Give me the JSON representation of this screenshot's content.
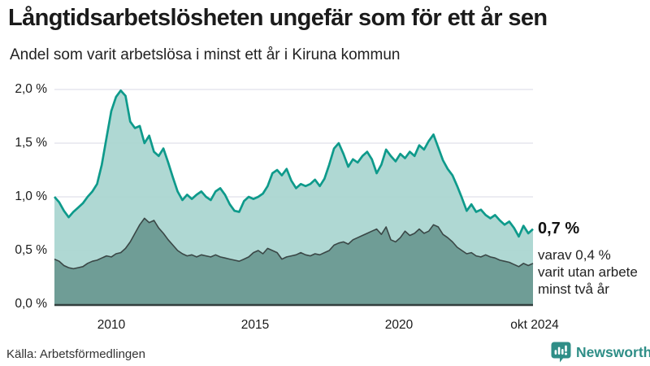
{
  "header": {
    "title": "Långtidsarbetslösheten ungefär som för ett år sen",
    "subtitle": "Andel som varit arbetslösa i minst ett år i Kiruna kommun"
  },
  "chart_data": {
    "type": "area",
    "title": "Långtidsarbetslösheten ungefär som för ett år sen",
    "subtitle": "Andel som varit arbetslösa i minst ett år i Kiruna kommun",
    "unit": "%",
    "x_start": "jan 2008",
    "x_end": "okt 2024",
    "x_ticks": [
      "2010",
      "2015",
      "2020",
      "okt 2024"
    ],
    "y_ticks": [
      "2,0 %",
      "1,5 %",
      "1,0 %",
      "0,5 %",
      "0,0 %"
    ],
    "y_tick_values": [
      2.0,
      1.5,
      1.0,
      0.5,
      0.0
    ],
    "ylim": [
      0,
      2.0
    ],
    "grid": "horizontal",
    "legend_position": "none",
    "series": [
      {
        "name": "Andel arbetslösa minst ett år",
        "line_color": "#0e9a8b",
        "fill_color": "#a8d5cf",
        "last_value": 0.7,
        "values": [
          1.0,
          0.95,
          0.87,
          0.81,
          0.86,
          0.9,
          0.94,
          1.0,
          1.05,
          1.12,
          1.3,
          1.55,
          1.8,
          1.93,
          1.99,
          1.94,
          1.7,
          1.64,
          1.66,
          1.5,
          1.57,
          1.42,
          1.38,
          1.45,
          1.32,
          1.18,
          1.05,
          0.97,
          1.02,
          0.98,
          1.02,
          1.05,
          1.0,
          0.97,
          1.05,
          1.08,
          1.02,
          0.93,
          0.87,
          0.86,
          0.96,
          1.0,
          0.98,
          1.0,
          1.03,
          1.1,
          1.22,
          1.25,
          1.2,
          1.26,
          1.15,
          1.08,
          1.12,
          1.1,
          1.12,
          1.16,
          1.1,
          1.17,
          1.3,
          1.45,
          1.5,
          1.4,
          1.28,
          1.35,
          1.32,
          1.38,
          1.42,
          1.35,
          1.22,
          1.3,
          1.44,
          1.38,
          1.33,
          1.4,
          1.36,
          1.42,
          1.38,
          1.48,
          1.44,
          1.52,
          1.58,
          1.46,
          1.34,
          1.26,
          1.2,
          1.1,
          0.99,
          0.87,
          0.93,
          0.86,
          0.88,
          0.83,
          0.8,
          0.83,
          0.78,
          0.74,
          0.77,
          0.71,
          0.63,
          0.73,
          0.66,
          0.7
        ]
      },
      {
        "name": "Andel utan arbete minst två år",
        "line_color": "#3a4746",
        "fill_color": "#6f9d96",
        "last_value": 0.4,
        "values": [
          0.42,
          0.4,
          0.36,
          0.34,
          0.33,
          0.34,
          0.35,
          0.38,
          0.4,
          0.41,
          0.43,
          0.45,
          0.44,
          0.47,
          0.48,
          0.52,
          0.58,
          0.66,
          0.74,
          0.8,
          0.76,
          0.78,
          0.71,
          0.66,
          0.6,
          0.55,
          0.5,
          0.47,
          0.45,
          0.46,
          0.44,
          0.46,
          0.45,
          0.44,
          0.46,
          0.44,
          0.43,
          0.42,
          0.41,
          0.4,
          0.42,
          0.44,
          0.48,
          0.5,
          0.47,
          0.52,
          0.5,
          0.48,
          0.42,
          0.44,
          0.45,
          0.46,
          0.48,
          0.46,
          0.45,
          0.47,
          0.46,
          0.48,
          0.5,
          0.55,
          0.57,
          0.58,
          0.56,
          0.6,
          0.62,
          0.64,
          0.66,
          0.68,
          0.7,
          0.65,
          0.72,
          0.6,
          0.58,
          0.62,
          0.68,
          0.64,
          0.66,
          0.7,
          0.66,
          0.68,
          0.74,
          0.72,
          0.65,
          0.62,
          0.58,
          0.53,
          0.5,
          0.47,
          0.48,
          0.45,
          0.44,
          0.46,
          0.44,
          0.43,
          0.41,
          0.4,
          0.39,
          0.37,
          0.35,
          0.38,
          0.36,
          0.38
        ]
      }
    ],
    "annotation": {
      "value_label": "0,7 %",
      "detail_line1": "varav 0,4 %",
      "detail_line2": "varit utan arbete",
      "detail_line3": "minst två år"
    }
  },
  "colors": {
    "accent_teal": "#0e9a8b",
    "light_fill": "#a8d5cf",
    "dark_fill": "#6f9d96",
    "dark_line": "#3a4746",
    "gridline": "#e1e1e9",
    "baseline": "#333f3e",
    "brand_teal": "#2f8e87"
  },
  "footer": {
    "source": "Källa: Arbetsförmedlingen",
    "brand": "Newsworthy"
  }
}
